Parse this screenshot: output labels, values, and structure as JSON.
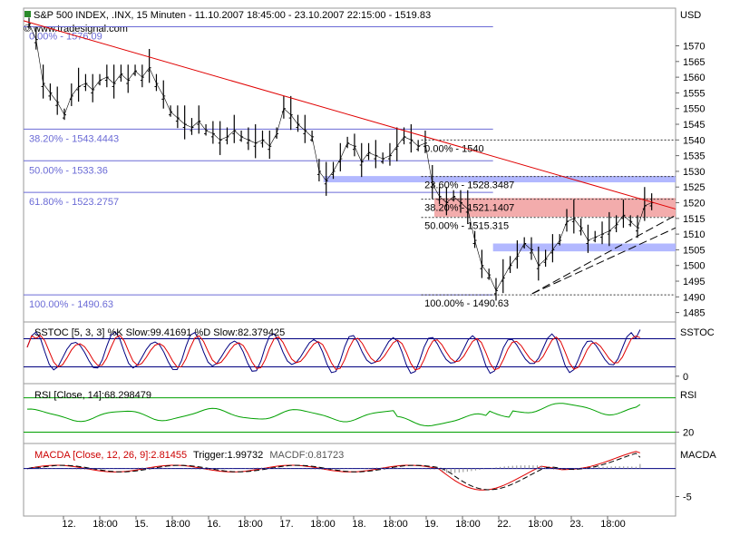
{
  "header": {
    "title": "S&P 500 INDEX, .INX, 15 Minuten - 11.10.2007 18:45:00 - 23.10.2007 22:15:00 - 1519.83",
    "source": "www.tradesignal.com",
    "currency": "USD"
  },
  "colors": {
    "price": "#000000",
    "trend_line": "#e00000",
    "fib_left": "#6b6bd6",
    "blue_band": "#aab0ff",
    "red_band": "#f2a3a3",
    "indicator_blue": "#000080",
    "indicator_red": "#e00000",
    "rsi_green": "#00a000",
    "macd_hist": "#909090"
  },
  "chart_data": [
    {
      "type": "line",
      "name": "price",
      "ylim": [
        1482,
        1582
      ],
      "yticks": [
        1485,
        1490,
        1495,
        1500,
        1505,
        1510,
        1515,
        1520,
        1525,
        1530,
        1535,
        1540,
        1545,
        1550,
        1555,
        1560,
        1565,
        1570
      ],
      "x_labels": [
        "12.",
        "18:00",
        "15.",
        "18:00",
        "16.",
        "18:00",
        "17.",
        "18:00",
        "18.",
        "18:00",
        "19.",
        "18:00",
        "22.",
        "18:00",
        "23.",
        "18:00"
      ],
      "close_path": [
        1577,
        1572,
        1558,
        1555,
        1552,
        1548,
        1554,
        1557,
        1558,
        1556,
        1559,
        1560,
        1558,
        1561,
        1559,
        1562,
        1560,
        1563,
        1558,
        1554,
        1549,
        1547,
        1545,
        1544,
        1546,
        1543,
        1542,
        1540,
        1541,
        1543,
        1541,
        1540,
        1539,
        1540,
        1538,
        1542,
        1550,
        1548,
        1545,
        1543,
        1541,
        1530,
        1527,
        1530,
        1534,
        1539,
        1538,
        1533,
        1536,
        1535,
        1534,
        1535,
        1538,
        1541,
        1540,
        1538,
        1539,
        1526,
        1522,
        1520,
        1522,
        1520,
        1518,
        1508,
        1500,
        1497,
        1492,
        1496,
        1500,
        1503,
        1507,
        1505,
        1500,
        1502,
        1505,
        1508,
        1514,
        1515,
        1512,
        1508,
        1509,
        1510,
        1511,
        1513,
        1516,
        1514,
        1512,
        1519,
        1520
      ],
      "trend_line": [
        [
          0,
          1578
        ],
        [
          1,
          1518
        ]
      ],
      "support_lines": [
        {
          "from": [
            0.78,
            1491
          ],
          "to": [
            1,
            1512
          ]
        },
        {
          "from": [
            0.78,
            1491
          ],
          "to": [
            1,
            1516
          ]
        }
      ],
      "fib_left": [
        {
          "label": "0.00% - 1576.09",
          "value": 1576.09
        },
        {
          "label": "38.20% - 1543.4443",
          "value": 1543.4443
        },
        {
          "label": "50.00% - 1533.36",
          "value": 1533.36
        },
        {
          "label": "61.80% - 1523.2757",
          "value": 1523.2757
        },
        {
          "label": "100.00% - 1490.63",
          "value": 1490.63
        }
      ],
      "fib_right": [
        {
          "label": "0.00% - 1540",
          "value": 1540
        },
        {
          "label": "23.60% - 1528.3487",
          "value": 1528.3487
        },
        {
          "label": "38.20% - 1521.1407",
          "value": 1521.1407
        },
        {
          "label": "50.00% - 1515.315",
          "value": 1515.315
        },
        {
          "label": "100.00% - 1490.63",
          "value": 1490.63
        }
      ],
      "zones": [
        {
          "kind": "blue",
          "from": 1526.5,
          "to": 1528.5
        },
        {
          "kind": "blue",
          "from": 1504.5,
          "to": 1507
        },
        {
          "kind": "red",
          "from": 1515.5,
          "to": 1521.5
        }
      ]
    },
    {
      "type": "line",
      "name": "SSTOC",
      "label": "SSTOC [5, 3, 3] %K Slow:99.41691 %D Slow:82.379425",
      "axis_label": "SSTOC",
      "ylim": [
        -10,
        110
      ],
      "levels": [
        80,
        20
      ],
      "yticks": [
        0
      ],
      "k_last": 99.41691,
      "d_last": 82.379425
    },
    {
      "type": "line",
      "name": "RSI",
      "label": "RSI [Close, 14]:68.298479",
      "axis_label": "RSI",
      "ylim": [
        5,
        100
      ],
      "levels": [
        80,
        20
      ],
      "yticks": [
        20
      ],
      "last": 68.298479
    },
    {
      "type": "line",
      "name": "MACDA",
      "label_main": "MACDA [Close, 12, 26, 9]:2.81455",
      "label_trigger": "Trigger:1.99732",
      "label_macdf": "MACDF:0.81723",
      "axis_label": "MACDA",
      "ylim": [
        -8,
        4
      ],
      "yticks": [
        -5
      ],
      "macd_last": 2.81455,
      "trigger_last": 1.99732,
      "macdf_last": 0.81723
    }
  ]
}
